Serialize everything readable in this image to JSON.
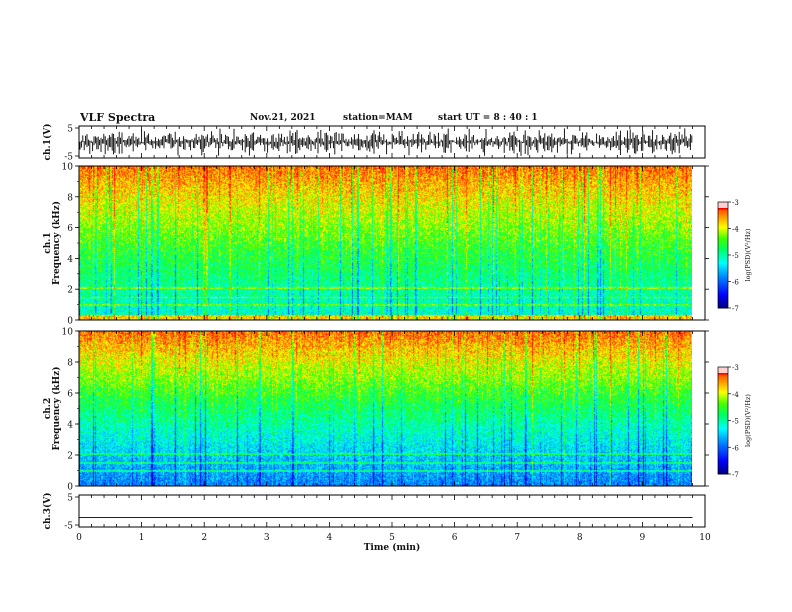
{
  "header": {
    "title": "VLF Spectra",
    "date": "Nov.21, 2021",
    "station": "station=MAM",
    "start_time": "start  UT =  8 : 40 : 1"
  },
  "chart_data": [
    {
      "type": "line",
      "panel": "ch1-waveform",
      "ylabel": "ch.1(V)",
      "ylim": [
        -5,
        5
      ],
      "y_ticks": [
        "5",
        "-5"
      ],
      "description_of_signal": "dense impulsive spikes",
      "color": "#000000"
    },
    {
      "type": "heatmap",
      "panel": "ch1-spectrogram",
      "ylabel_line1": "ch.1",
      "ylabel_line2": "Frequency (kHz)",
      "ylim": [
        0,
        10
      ],
      "y_ticks": [
        "0",
        "2",
        "4",
        "6",
        "8",
        "10"
      ],
      "colorbar": {
        "label": "log(PSD)(V²/Hz)",
        "range": [
          -7,
          -3
        ],
        "ticks": [
          "-3",
          "-4",
          "-5",
          "-6",
          "-7"
        ]
      }
    },
    {
      "type": "heatmap",
      "panel": "ch2-spectrogram",
      "ylabel_line1": "ch.2",
      "ylabel_line2": "Frequency (kHz)",
      "ylim": [
        0,
        10
      ],
      "y_ticks": [
        "0",
        "2",
        "4",
        "6",
        "8",
        "10"
      ],
      "colorbar": {
        "label": "log(PSD)(V²/Hz)",
        "range": [
          -7,
          -3
        ],
        "ticks": [
          "-3",
          "-4",
          "-5",
          "-6",
          "-7"
        ]
      }
    },
    {
      "type": "line",
      "panel": "ch3-waveform",
      "ylabel": "ch.3(V)",
      "ylim": [
        -5,
        5
      ],
      "y_ticks": [
        "5",
        "-5"
      ],
      "values_constant": -2,
      "color": "#000000"
    }
  ],
  "x_axis": {
    "label": "Time (min)",
    "xlim": [
      0,
      10
    ],
    "ticks": [
      "0",
      "1",
      "2",
      "3",
      "4",
      "5",
      "6",
      "7",
      "8",
      "9",
      "10"
    ],
    "data_end": 9.8
  },
  "colormap": [
    "#000080",
    "#0000ff",
    "#0080ff",
    "#00ffff",
    "#00ff80",
    "#00ff00",
    "#80ff00",
    "#ffff00",
    "#ff8000",
    "#ff0000",
    "#ffffff"
  ]
}
